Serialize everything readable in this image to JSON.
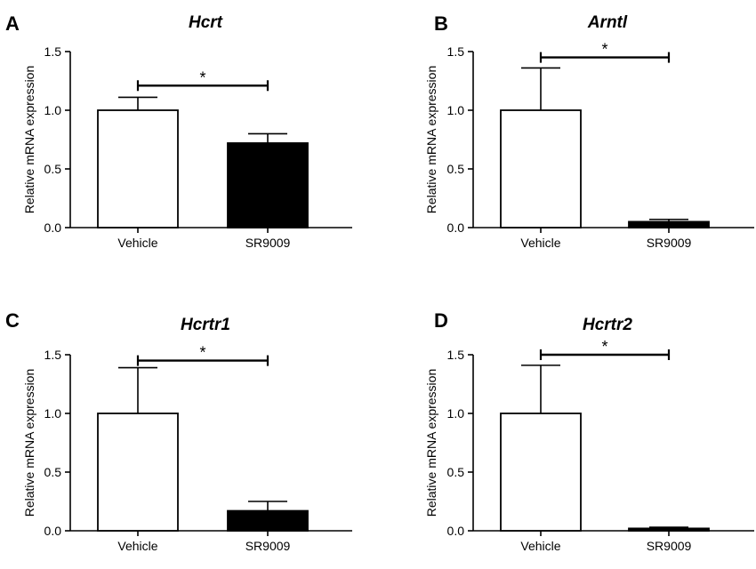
{
  "figure": {
    "y_axis_label": "Relative mRNA expression"
  },
  "colors": {
    "vehicle_fill": "#ffffff",
    "sr9009_fill": "#000000",
    "stroke": "#000000"
  },
  "chart_data": [
    {
      "panel": "A",
      "type": "bar",
      "title": "Hcrt",
      "ylabel": "Relative mRNA expression",
      "ylim": [
        0,
        1.5
      ],
      "yticks": [
        "0.0",
        "0.5",
        "1.0",
        "1.5"
      ],
      "categories": [
        "Vehicle",
        "SR9009"
      ],
      "values": [
        1.0,
        0.72
      ],
      "errors": [
        0.11,
        0.08
      ],
      "significance": {
        "label": "*",
        "y": 1.21
      }
    },
    {
      "panel": "B",
      "type": "bar",
      "title": "Arntl",
      "ylabel": "Relative mRNA expression",
      "ylim": [
        0,
        1.5
      ],
      "yticks": [
        "0.0",
        "0.5",
        "1.0",
        "1.5"
      ],
      "categories": [
        "Vehicle",
        "SR9009"
      ],
      "values": [
        1.0,
        0.05
      ],
      "errors": [
        0.36,
        0.02
      ],
      "significance": {
        "label": "*",
        "y": 1.45
      }
    },
    {
      "panel": "C",
      "type": "bar",
      "title": "Hcrtr1",
      "ylabel": "Relative mRNA expression",
      "ylim": [
        0,
        1.5
      ],
      "yticks": [
        "0.0",
        "0.5",
        "1.0",
        "1.5"
      ],
      "categories": [
        "Vehicle",
        "SR9009"
      ],
      "values": [
        1.0,
        0.17
      ],
      "errors": [
        0.39,
        0.08
      ],
      "significance": {
        "label": "*",
        "y": 1.45
      }
    },
    {
      "panel": "D",
      "type": "bar",
      "title": "Hcrtr2",
      "ylabel": "Relative mRNA expression",
      "ylim": [
        0,
        1.5
      ],
      "yticks": [
        "0.0",
        "0.5",
        "1.0",
        "1.5"
      ],
      "categories": [
        "Vehicle",
        "SR9009"
      ],
      "values": [
        1.0,
        0.02
      ],
      "errors": [
        0.41,
        0.01
      ],
      "significance": {
        "label": "*",
        "y": 1.5
      }
    }
  ]
}
